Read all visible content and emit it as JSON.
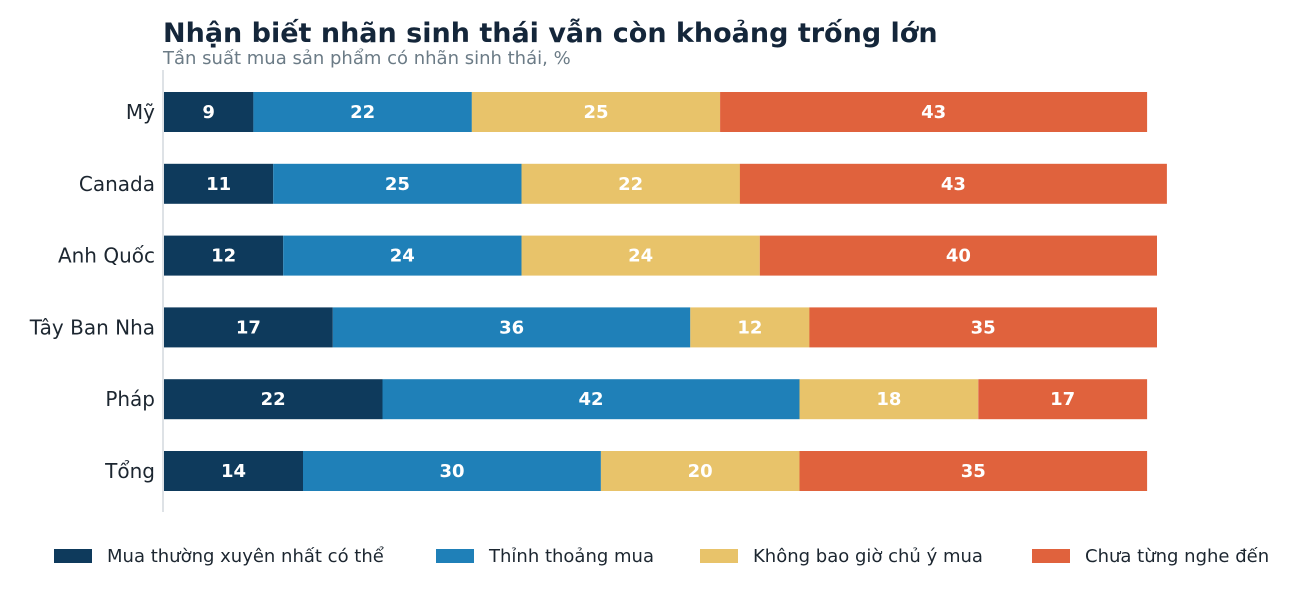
{
  "chart_data": {
    "type": "bar",
    "orientation": "horizontal",
    "stacked": true,
    "title": "Nhận biết nhãn sinh thái vẫn còn khoảng trống lớn",
    "subtitle": "Tần suất mua sản phẩm có nhãn sinh thái, %",
    "categories": [
      "Mỹ",
      "Canada",
      "Anh Quốc",
      "Tây Ban Nha",
      "Pháp",
      "Tổng"
    ],
    "series": [
      {
        "name": "Mua thường xuyên nhất có thể",
        "color": "#0e3a5c",
        "values": [
          9,
          11,
          12,
          17,
          22,
          14
        ]
      },
      {
        "name": "Thỉnh thoảng mua",
        "color": "#1f80b8",
        "values": [
          22,
          25,
          24,
          36,
          42,
          30
        ]
      },
      {
        "name": "Không bao giờ chủ ý mua",
        "color": "#e8c36a",
        "values": [
          25,
          22,
          24,
          12,
          18,
          20
        ]
      },
      {
        "name": "Chưa từng nghe đến",
        "color": "#e0623d",
        "values": [
          43,
          43,
          40,
          35,
          17,
          35
        ]
      }
    ],
    "xlim": [
      0,
      100
    ],
    "grid": false,
    "legend_position": "bottom",
    "data_labels": true
  }
}
